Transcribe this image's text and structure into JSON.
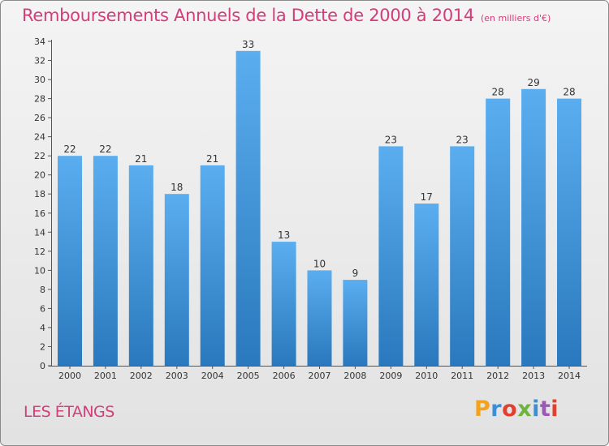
{
  "header": {
    "title": "Remboursements Annuels de la Dette de 2000 à 2014",
    "unit": "(en milliers d'€)"
  },
  "footer": {
    "commune": "LES ÉTANGS",
    "logo": "Proxiti",
    "logo_colors": [
      "#f4a21b",
      "#3a8fd6",
      "#e0402f",
      "#6cb33f",
      "#3a8fd6",
      "#9b59b6",
      "#e0402f"
    ]
  },
  "colors": {
    "bar_top": "#5aaef0",
    "bar_bottom": "#2a78bd",
    "text": "#333333",
    "accent": "#d23d7a",
    "grid_tick": "#555555"
  },
  "chart_data": {
    "type": "bar",
    "title": "Remboursements Annuels de la Dette de 2000 à 2014",
    "unit": "(en milliers d'€)",
    "categories": [
      "2000",
      "2001",
      "2002",
      "2003",
      "2004",
      "2005",
      "2006",
      "2007",
      "2008",
      "2009",
      "2010",
      "2011",
      "2012",
      "2013",
      "2014"
    ],
    "values": [
      22,
      22,
      21,
      18,
      21,
      33,
      13,
      10,
      9,
      23,
      17,
      23,
      28,
      29,
      28
    ],
    "ylim": [
      0,
      34
    ],
    "yticks": [
      0,
      2,
      4,
      6,
      8,
      10,
      12,
      14,
      16,
      18,
      20,
      22,
      24,
      26,
      28,
      30,
      32,
      34
    ],
    "grid": false,
    "legend": "none"
  }
}
